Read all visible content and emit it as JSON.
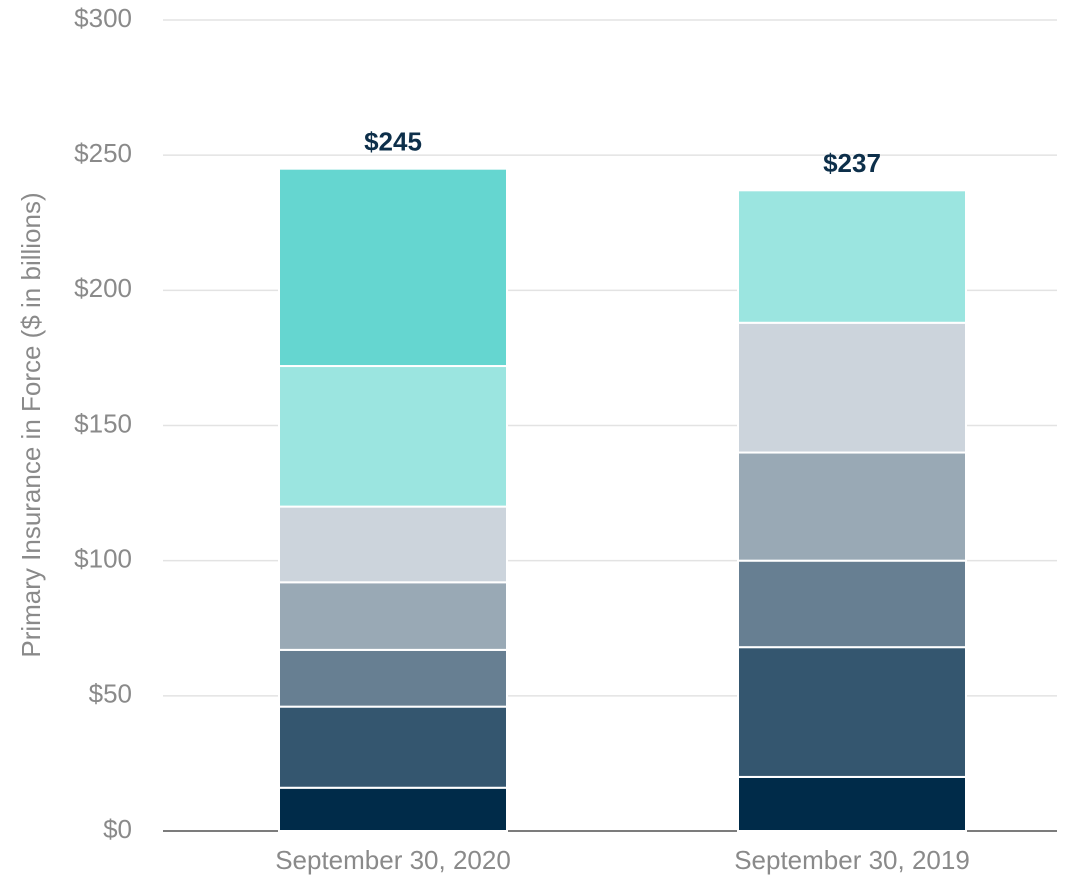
{
  "chart_data": {
    "type": "stacked_bar",
    "ylabel": "Primary Insurance in Force ($ in billions)",
    "categories": [
      "September 30, 2020",
      "September 30, 2019"
    ],
    "series": [
      {
        "color": "#002b49",
        "values": [
          16,
          20
        ]
      },
      {
        "color": "#34566f",
        "values": [
          30,
          48
        ]
      },
      {
        "color": "#677f92",
        "values": [
          21,
          32
        ]
      },
      {
        "color": "#99a9b5",
        "values": [
          25,
          40
        ]
      },
      {
        "color": "#ccd4dc",
        "values": [
          28,
          48
        ]
      },
      {
        "color": "#9be5e0",
        "values": [
          52,
          49
        ]
      },
      {
        "color": "#65d6d0",
        "values": [
          73,
          null
        ]
      }
    ],
    "totals": [
      245,
      237
    ],
    "total_labels": [
      "$245",
      "$237"
    ],
    "ylim": [
      0,
      300
    ],
    "yticks": [
      {
        "value": 0,
        "label": "$0"
      },
      {
        "value": 50,
        "label": "$50"
      },
      {
        "value": 100,
        "label": "$100"
      },
      {
        "value": 150,
        "label": "$150"
      },
      {
        "value": 200,
        "label": "$200"
      },
      {
        "value": 250,
        "label": "$250"
      },
      {
        "value": 300,
        "label": "$300"
      }
    ],
    "grid": true
  }
}
